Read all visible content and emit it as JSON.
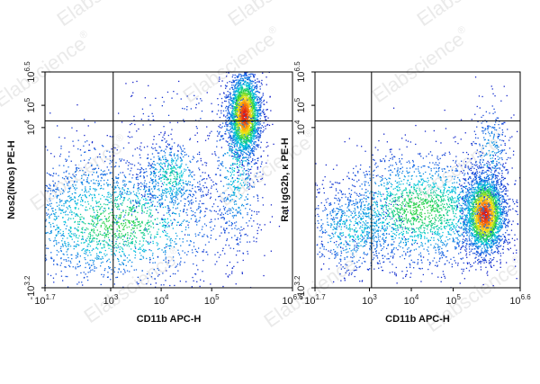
{
  "watermark": {
    "text": "Elabscience",
    "mark": "®"
  },
  "chart_data": [
    {
      "type": "scatter",
      "style": "flow-cytometry density dot plot",
      "xlabel": "CD11b APC-H",
      "ylabel": "Nos2(iNos) PE-H",
      "xscale": "log",
      "yscale": "log",
      "xlim_exp": [
        1.7,
        6.6
      ],
      "ylim_exp": [
        -3.2,
        6.5
      ],
      "x_ticks": [
        {
          "base": "10",
          "exp": "1.7",
          "pos": 1.7
        },
        {
          "base": "10",
          "exp": "3",
          "pos": 3
        },
        {
          "base": "10",
          "exp": "4",
          "pos": 4
        },
        {
          "base": "10",
          "exp": "5",
          "pos": 5
        },
        {
          "base": "10",
          "exp": "6.6",
          "pos": 6.6
        }
      ],
      "y_ticks": [
        {
          "base": "-10",
          "exp": "3.2",
          "pos": -3.2
        },
        {
          "base": "10",
          "exp": "4",
          "pos": 4
        },
        {
          "base": "10",
          "exp": "5",
          "pos": 5
        },
        {
          "base": "10",
          "exp": "6.5",
          "pos": 6.5
        }
      ],
      "gate": {
        "x_exp": 3.05,
        "y_exp": 4.3
      },
      "populations": [
        {
          "cx": 5.65,
          "cy": 4.55,
          "sx": 0.16,
          "sy": 0.95,
          "n": 2600,
          "peak": 1.0
        },
        {
          "cx": 3.1,
          "cy": -0.3,
          "sx": 1.1,
          "sy": 1.4,
          "n": 1900,
          "peak": 0.55
        },
        {
          "cx": 4.2,
          "cy": 1.8,
          "sx": 0.35,
          "sy": 0.9,
          "n": 550,
          "peak": 0.45
        },
        {
          "cx": 2.6,
          "cy": 0.2,
          "sx": 0.7,
          "sy": 2.2,
          "n": 450,
          "peak": 0.35
        },
        {
          "cx": 5.5,
          "cy": 2.4,
          "sx": 0.25,
          "sy": 2.2,
          "n": 600,
          "peak": 0.4
        },
        {
          "cx": 4.5,
          "cy": 4.6,
          "sx": 0.8,
          "sy": 0.7,
          "n": 90,
          "peak": 0.1
        }
      ],
      "grid": false,
      "legend": "none"
    },
    {
      "type": "scatter",
      "style": "flow-cytometry density dot plot",
      "xlabel": "CD11b APC-H",
      "ylabel": "Rat IgG2b, κ PE-H",
      "xscale": "log",
      "yscale": "log",
      "xlim_exp": [
        1.7,
        6.6
      ],
      "ylim_exp": [
        -3.2,
        6.5
      ],
      "x_ticks": [
        {
          "base": "10",
          "exp": "1.7",
          "pos": 1.7
        },
        {
          "base": "10",
          "exp": "3",
          "pos": 3
        },
        {
          "base": "10",
          "exp": "4",
          "pos": 4
        },
        {
          "base": "10",
          "exp": "5",
          "pos": 5
        },
        {
          "base": "10",
          "exp": "6.6",
          "pos": 6.6
        }
      ],
      "y_ticks": [
        {
          "base": "-10",
          "exp": "3.2",
          "pos": -3.2
        },
        {
          "base": "10",
          "exp": "4",
          "pos": 4
        },
        {
          "base": "10",
          "exp": "5",
          "pos": 5
        },
        {
          "base": "10",
          "exp": "6.5",
          "pos": 6.5
        }
      ],
      "gate": {
        "x_exp": 3.05,
        "y_exp": 4.3
      },
      "populations": [
        {
          "cx": 5.75,
          "cy": 0.1,
          "sx": 0.25,
          "sy": 0.9,
          "n": 2600,
          "peak": 1.0
        },
        {
          "cx": 4.2,
          "cy": 0.3,
          "sx": 1.1,
          "sy": 1.3,
          "n": 2200,
          "peak": 0.55
        },
        {
          "cx": 2.6,
          "cy": -0.6,
          "sx": 0.6,
          "sy": 1.0,
          "n": 600,
          "peak": 0.4
        },
        {
          "cx": 5.9,
          "cy": 2.8,
          "sx": 0.25,
          "sy": 1.3,
          "n": 300,
          "peak": 0.3
        }
      ],
      "grid": false,
      "legend": "none"
    }
  ]
}
